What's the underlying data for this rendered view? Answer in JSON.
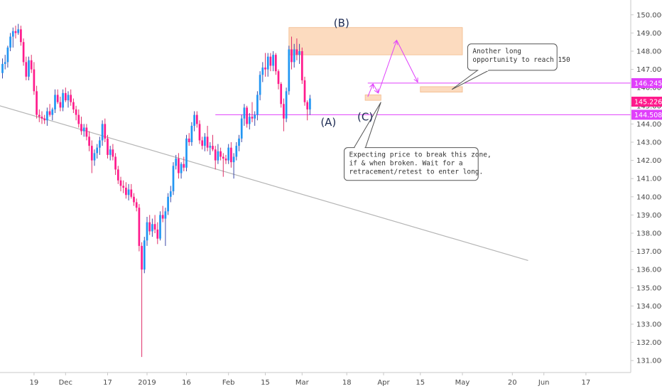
{
  "chart_data": {
    "type": "candlestick",
    "y_axis": {
      "min": 130.5,
      "max": 150.5,
      "ticks": [
        131.0,
        132.0,
        133.0,
        134.0,
        135.0,
        136.0,
        137.0,
        138.0,
        139.0,
        140.0,
        141.0,
        142.0,
        143.0,
        144.0,
        145.0,
        146.0,
        147.0,
        148.0,
        149.0,
        150.0
      ],
      "tick_labels": [
        "131.000",
        "132.000",
        "133.000",
        "134.000",
        "135.000",
        "136.000",
        "137.000",
        "138.000",
        "139.000",
        "140.000",
        "141.000",
        "142.000",
        "143.000",
        "144.000",
        "145.000",
        "146.000",
        "147.000",
        "148.000",
        "149.000",
        "150.000"
      ]
    },
    "x_axis": {
      "ticks": [
        {
          "label": "19",
          "day": 12
        },
        {
          "label": "Dec",
          "day": 24
        },
        {
          "label": "17",
          "day": 40
        },
        {
          "label": "2019",
          "day": 55
        },
        {
          "label": "16",
          "day": 70
        },
        {
          "label": "Feb",
          "day": 86
        },
        {
          "label": "15",
          "day": 100
        },
        {
          "label": "Mar",
          "day": 114
        },
        {
          "label": "18",
          "day": 131
        },
        {
          "label": "Apr",
          "day": 145
        },
        {
          "label": "15",
          "day": 159
        },
        {
          "label": "May",
          "day": 175
        },
        {
          "label": "20",
          "day": 194
        },
        {
          "label": "Jun",
          "day": 206
        },
        {
          "label": "17",
          "day": 222
        }
      ]
    },
    "candle_colors": {
      "up": "#2196f3",
      "down": "#ff1a8c",
      "wick_up": "#3c4aa8",
      "wick_down": "#e0306a"
    },
    "candles": [
      [
        146.8,
        147.6,
        146.5,
        147.3
      ],
      [
        147.3,
        147.8,
        147.0,
        147.4
      ],
      [
        147.4,
        148.3,
        147.1,
        148.2
      ],
      [
        148.2,
        149.0,
        148.0,
        148.8
      ],
      [
        148.8,
        149.3,
        148.2,
        149.1
      ],
      [
        149.1,
        149.4,
        148.7,
        149.0
      ],
      [
        149.0,
        149.5,
        148.9,
        149.2
      ],
      [
        149.2,
        149.4,
        148.3,
        148.5
      ],
      [
        148.5,
        148.7,
        147.2,
        147.4
      ],
      [
        147.4,
        147.7,
        146.4,
        146.6
      ],
      [
        146.6,
        147.7,
        146.4,
        147.5
      ],
      [
        147.5,
        147.8,
        146.8,
        147.0
      ],
      [
        147.0,
        147.4,
        145.6,
        145.8
      ],
      [
        145.8,
        146.1,
        144.3,
        144.5
      ],
      [
        144.5,
        144.8,
        144.1,
        144.4
      ],
      [
        144.4,
        144.7,
        144.0,
        144.3
      ],
      [
        144.3,
        144.5,
        144.0,
        144.2
      ],
      [
        144.2,
        144.9,
        143.9,
        144.7
      ],
      [
        144.7,
        145.1,
        144.4,
        144.5
      ],
      [
        144.5,
        144.9,
        144.2,
        144.8
      ],
      [
        144.8,
        145.9,
        144.6,
        145.6
      ],
      [
        145.6,
        145.9,
        145.1,
        145.2
      ],
      [
        145.2,
        145.5,
        144.7,
        144.9
      ],
      [
        144.9,
        145.9,
        144.7,
        145.7
      ],
      [
        145.7,
        146.0,
        145.2,
        145.3
      ],
      [
        145.3,
        145.8,
        144.9,
        145.6
      ],
      [
        145.6,
        145.9,
        145.0,
        145.2
      ],
      [
        145.2,
        145.4,
        144.6,
        144.8
      ],
      [
        144.8,
        145.0,
        144.2,
        144.5
      ],
      [
        144.5,
        144.8,
        143.8,
        144.0
      ],
      [
        144.0,
        144.4,
        143.4,
        143.6
      ],
      [
        143.6,
        144.0,
        143.3,
        143.8
      ],
      [
        143.8,
        144.0,
        143.1,
        143.3
      ],
      [
        143.3,
        143.6,
        142.5,
        142.8
      ],
      [
        142.8,
        143.1,
        141.3,
        142.0
      ],
      [
        142.0,
        142.6,
        141.7,
        142.4
      ],
      [
        142.4,
        142.9,
        142.1,
        142.7
      ],
      [
        142.7,
        143.3,
        142.3,
        143.1
      ],
      [
        143.1,
        144.2,
        142.8,
        144.0
      ],
      [
        144.0,
        144.3,
        143.0,
        143.2
      ],
      [
        143.2,
        143.4,
        142.1,
        142.3
      ],
      [
        142.3,
        142.8,
        142.0,
        142.6
      ],
      [
        142.6,
        142.9,
        142.0,
        142.2
      ],
      [
        142.2,
        142.4,
        141.2,
        141.5
      ],
      [
        141.5,
        141.7,
        140.7,
        140.9
      ],
      [
        140.9,
        141.1,
        140.3,
        140.6
      ],
      [
        140.6,
        140.9,
        140.2,
        140.5
      ],
      [
        140.5,
        140.8,
        139.9,
        140.1
      ],
      [
        140.1,
        140.7,
        139.8,
        140.4
      ],
      [
        140.4,
        140.7,
        139.9,
        140.0
      ],
      [
        140.0,
        140.2,
        139.5,
        139.7
      ],
      [
        139.7,
        139.9,
        139.2,
        139.4
      ],
      [
        139.4,
        139.6,
        137.0,
        137.3
      ],
      [
        137.3,
        137.5,
        131.2,
        136.0
      ],
      [
        136.0,
        137.8,
        135.8,
        137.6
      ],
      [
        137.6,
        138.9,
        137.3,
        138.6
      ],
      [
        138.6,
        139.0,
        137.9,
        138.1
      ],
      [
        138.1,
        138.8,
        137.8,
        138.5
      ],
      [
        138.5,
        139.0,
        138.0,
        138.2
      ],
      [
        138.2,
        138.6,
        137.4,
        137.7
      ],
      [
        137.7,
        139.2,
        137.6,
        139.0
      ],
      [
        139.0,
        139.5,
        138.6,
        138.8
      ],
      [
        138.8,
        139.4,
        137.3,
        139.2
      ],
      [
        139.2,
        140.2,
        139.0,
        140.0
      ],
      [
        140.0,
        140.6,
        139.7,
        140.3
      ],
      [
        140.3,
        141.9,
        140.1,
        141.7
      ],
      [
        141.7,
        142.3,
        141.5,
        142.1
      ],
      [
        142.1,
        142.4,
        141.0,
        141.3
      ],
      [
        141.3,
        141.9,
        141.0,
        141.8
      ],
      [
        141.8,
        142.2,
        141.4,
        141.6
      ],
      [
        141.6,
        143.4,
        141.4,
        143.2
      ],
      [
        143.2,
        143.5,
        142.8,
        143.0
      ],
      [
        143.0,
        144.1,
        142.8,
        143.9
      ],
      [
        143.9,
        144.7,
        143.6,
        144.5
      ],
      [
        144.5,
        144.7,
        143.8,
        144.0
      ],
      [
        144.0,
        144.2,
        142.9,
        143.1
      ],
      [
        143.1,
        143.3,
        142.6,
        142.8
      ],
      [
        142.8,
        143.5,
        142.5,
        143.3
      ],
      [
        143.3,
        143.9,
        142.5,
        142.7
      ],
      [
        142.7,
        143.0,
        142.3,
        142.8
      ],
      [
        142.8,
        143.4,
        142.5,
        142.6
      ],
      [
        142.6,
        142.8,
        141.5,
        142.0
      ],
      [
        142.0,
        142.9,
        141.8,
        142.5
      ],
      [
        142.5,
        142.7,
        142.0,
        142.2
      ],
      [
        142.2,
        142.4,
        141.1,
        142.1
      ],
      [
        142.1,
        142.3,
        141.8,
        142.0
      ],
      [
        142.0,
        142.9,
        141.8,
        142.7
      ],
      [
        142.7,
        143.0,
        141.6,
        141.9
      ],
      [
        141.9,
        142.4,
        141.0,
        142.2
      ],
      [
        142.2,
        143.0,
        142.0,
        142.8
      ],
      [
        142.8,
        143.4,
        142.5,
        143.2
      ],
      [
        143.2,
        144.5,
        143.0,
        144.3
      ],
      [
        144.3,
        145.1,
        143.9,
        144.9
      ],
      [
        144.9,
        145.0,
        143.8,
        144.0
      ],
      [
        144.0,
        144.6,
        143.7,
        144.4
      ],
      [
        144.4,
        145.2,
        144.1,
        144.3
      ],
      [
        144.3,
        144.7,
        143.9,
        144.5
      ],
      [
        144.5,
        145.8,
        144.2,
        145.6
      ],
      [
        145.6,
        146.9,
        145.3,
        146.7
      ],
      [
        146.7,
        147.4,
        146.3,
        147.1
      ],
      [
        147.1,
        147.9,
        146.6,
        147.0
      ],
      [
        147.0,
        147.9,
        146.6,
        147.7
      ],
      [
        147.7,
        147.9,
        146.9,
        147.2
      ],
      [
        147.2,
        148.0,
        146.9,
        147.8
      ],
      [
        147.8,
        147.9,
        146.7,
        146.9
      ],
      [
        146.9,
        147.0,
        145.9,
        146.2
      ],
      [
        146.2,
        146.3,
        144.9,
        145.1
      ],
      [
        145.1,
        145.4,
        143.6,
        144.3
      ],
      [
        144.3,
        146.0,
        144.1,
        145.8
      ],
      [
        145.8,
        148.3,
        145.6,
        148.1
      ],
      [
        148.1,
        148.8,
        147.0,
        147.4
      ],
      [
        147.4,
        148.4,
        147.1,
        148.1
      ],
      [
        148.1,
        148.7,
        147.5,
        147.8
      ],
      [
        147.8,
        148.4,
        147.3,
        148.0
      ],
      [
        148.0,
        148.2,
        146.2,
        146.4
      ],
      [
        146.4,
        146.6,
        145.0,
        145.2
      ],
      [
        145.2,
        145.3,
        144.2,
        144.8
      ],
      [
        144.8,
        145.6,
        144.5,
        145.4
      ]
    ],
    "trendline": {
      "x1": -1,
      "y1": 145.0,
      "x2": 200,
      "y2": 136.5,
      "color": "#b5b5b5"
    },
    "horizontal_lines": [
      {
        "y": 146.245,
        "from_day": 139,
        "label": "146.245",
        "color": "#e040fb"
      },
      {
        "y": 144.508,
        "from_day": 81,
        "label": "144.508",
        "color": "#e040fb"
      }
    ],
    "current_price": {
      "y": 145.226,
      "label": "145.226",
      "color": "#ff1a8c"
    },
    "zones": [
      {
        "x1": 109,
        "x2": 175,
        "y_top": 149.3,
        "y_bottom": 147.8,
        "color": "#fbd5b4"
      },
      {
        "x1": 138,
        "x2": 144,
        "y_top": 145.6,
        "y_bottom": 145.3,
        "color": "#fbd5b4"
      },
      {
        "x1": 159,
        "x2": 175,
        "y_top": 146.05,
        "y_bottom": 145.75,
        "color": "#fbd5b4"
      }
    ],
    "projection_path": {
      "color": "#e040fb",
      "points": [
        [
          139,
          145.5
        ],
        [
          141,
          146.2
        ],
        [
          143,
          145.7
        ],
        [
          150,
          148.6
        ],
        [
          158,
          146.3
        ]
      ]
    },
    "wave_labels": [
      {
        "text": "(B)",
        "day": 129,
        "y": 149.35
      },
      {
        "text": "(A)",
        "day": 124,
        "y": 143.9
      },
      {
        "text": "(C)",
        "day": 138,
        "y": 144.2
      }
    ],
    "callouts": [
      {
        "lines": [
          "Another long",
          "opportunity to reach 150"
        ],
        "x1": 177,
        "x2": 211,
        "y_top": 148.4,
        "y_bottom": 146.95,
        "pointer_to": [
          171,
          145.9
        ]
      },
      {
        "lines": [
          "Expecting price to break this zone,",
          "if & when broken. Wait for a",
          "retracement/retest to enter long."
        ],
        "x1": 130,
        "x2": 181,
        "y_top": 142.7,
        "y_bottom": 140.9,
        "pointer_to": [
          144,
          145.2
        ]
      }
    ]
  }
}
